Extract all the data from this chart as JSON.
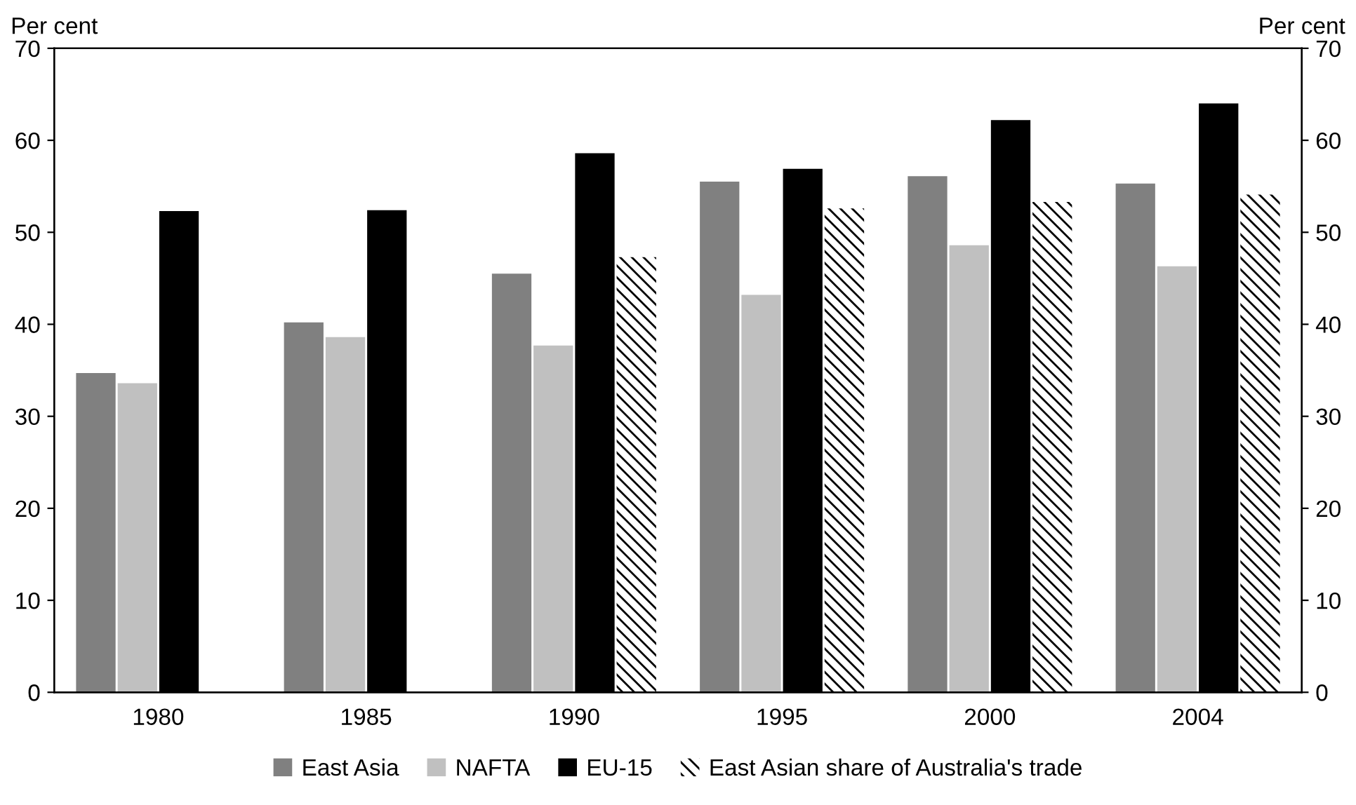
{
  "chart_data": {
    "type": "bar",
    "ylabel": "Per cent",
    "y2label": "Per cent",
    "categories": [
      "1980",
      "1985",
      "1990",
      "1995",
      "2000",
      "2004"
    ],
    "series": [
      {
        "name": "East Asia",
        "color": "#808080",
        "values": [
          34.7,
          40.2,
          45.5,
          55.5,
          56.1,
          55.3
        ]
      },
      {
        "name": "NAFTA",
        "color": "#c0c0c0",
        "values": [
          33.6,
          38.6,
          37.7,
          43.2,
          48.6,
          46.3
        ]
      },
      {
        "name": "EU-15",
        "color": "#000000",
        "values": [
          52.3,
          52.4,
          58.6,
          56.9,
          62.2,
          64.0
        ]
      },
      {
        "name": "East Asian share of Australia's trade",
        "color": "#ffffff",
        "values": [
          null,
          null,
          47.3,
          52.6,
          53.3,
          54.1
        ]
      }
    ],
    "ylim": [
      0,
      70
    ],
    "yticks": [
      0,
      10,
      20,
      30,
      40,
      50,
      60,
      70
    ],
    "y2lim": [
      0,
      70
    ],
    "y2ticks": [
      0,
      10,
      20,
      30,
      40,
      50,
      60,
      70
    ],
    "grid": false,
    "legend": "bottom"
  }
}
